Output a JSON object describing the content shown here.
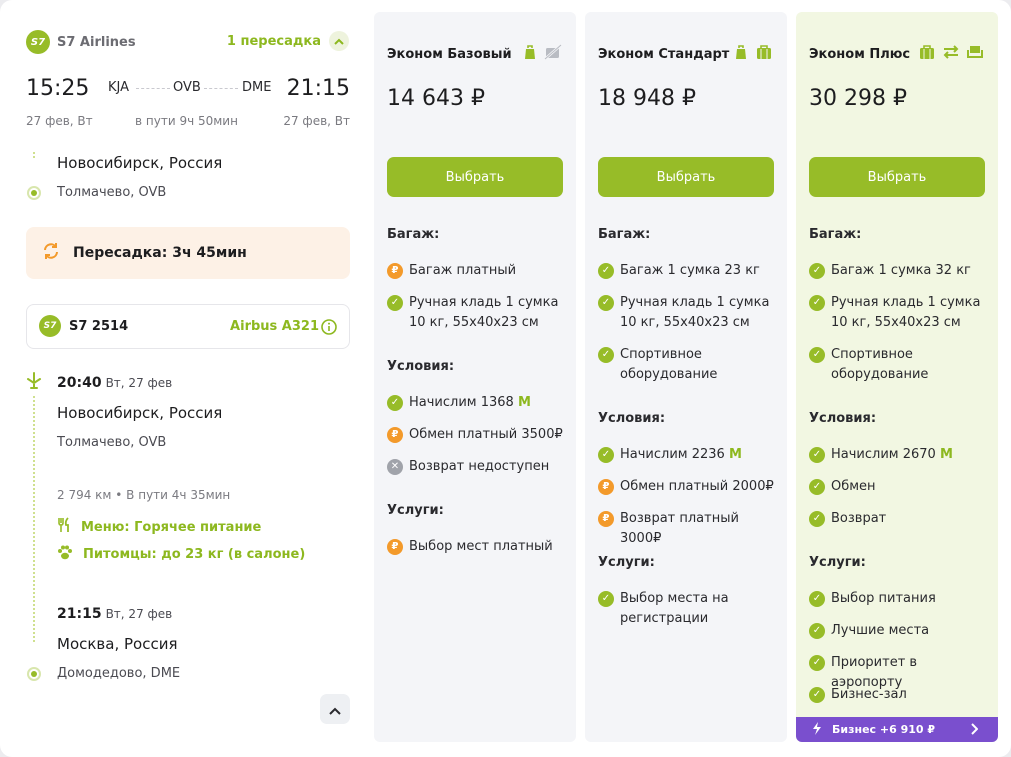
{
  "segment": {
    "airline": "S7 Airlines",
    "airline_logo": "S7",
    "transfers": "1 пересадка",
    "dep_time": "15:25",
    "arr_time": "21:15",
    "from": "KJA",
    "via": "OVB",
    "to": "DME",
    "dep_date": "27 фев, Вт",
    "duration": "в пути 9ч 50мин",
    "arr_date": "27 фев, Вт"
  },
  "transfer_point": {
    "city": "Новосибирск, Россия",
    "airport": "Толмачево, OVB",
    "layover": "Пересадка: 3ч 45мин"
  },
  "flight": {
    "number": "S7 2514",
    "aircraft": "Airbus A321",
    "dep_time": "20:40",
    "dep_date": "Вт, 27 фев",
    "dep_city": "Новосибирск, Россия",
    "dep_airport": "Толмачево, OVB",
    "stats": "2 794 км  •  В пути 4ч 35мин",
    "meal": "Меню: Горячее питание",
    "pets": "Питомцы: до 23 кг (в салоне)",
    "arr_time": "21:15",
    "arr_date": "Вт, 27 фев",
    "arr_city": "Москва, Россия",
    "arr_airport": "Домодедово, DME"
  },
  "labels": {
    "baggage": "Багаж:",
    "conditions": "Условия:",
    "services": "Услуги:",
    "select": "Выбрать"
  },
  "fares": {
    "basic": {
      "name": "Эконом Базовый",
      "price": "14 643 ₽",
      "baggage": [
        "Багаж платный",
        "Ручная кладь 1 сумка 10 кг, 55x40x23 см"
      ],
      "miles": "Начислим 1368",
      "miles_sign": "M",
      "exchange": "Обмен платный 3500₽",
      "refund": "Возврат недоступен",
      "service": "Выбор мест платный"
    },
    "standard": {
      "name": "Эконом Стандарт",
      "price": "18 948 ₽",
      "baggage": [
        "Багаж 1 сумка 23 кг",
        "Ручная кладь 1 сумка 10 кг, 55x40x23 см",
        "Спортивное оборудование"
      ],
      "miles": "Начислим 2236",
      "miles_sign": "M",
      "exchange": "Обмен платный 2000₽",
      "refund": "Возврат платный 3000₽",
      "service": "Выбор места на регистрации"
    },
    "plus": {
      "name": "Эконом Плюс",
      "price": "30 298 ₽",
      "baggage": [
        "Багаж 1 сумка 32 кг",
        "Ручная кладь 1 сумка 10 кг, 55x40x23 см",
        "Спортивное оборудование"
      ],
      "miles": "Начислим 2670",
      "miles_sign": "M",
      "exchange": "Обмен",
      "refund": "Возврат",
      "services": [
        "Выбор питания",
        "Лучшие места",
        "Приоритет в аэропорту",
        "Бизнес-зал"
      ],
      "upgrade": "Бизнес +6 910 ₽"
    }
  },
  "colors": {
    "accent": "#97bc28",
    "paid": "#f39a2b",
    "unavailable": "#a0a3aa",
    "upgrade": "#7a4fce"
  }
}
